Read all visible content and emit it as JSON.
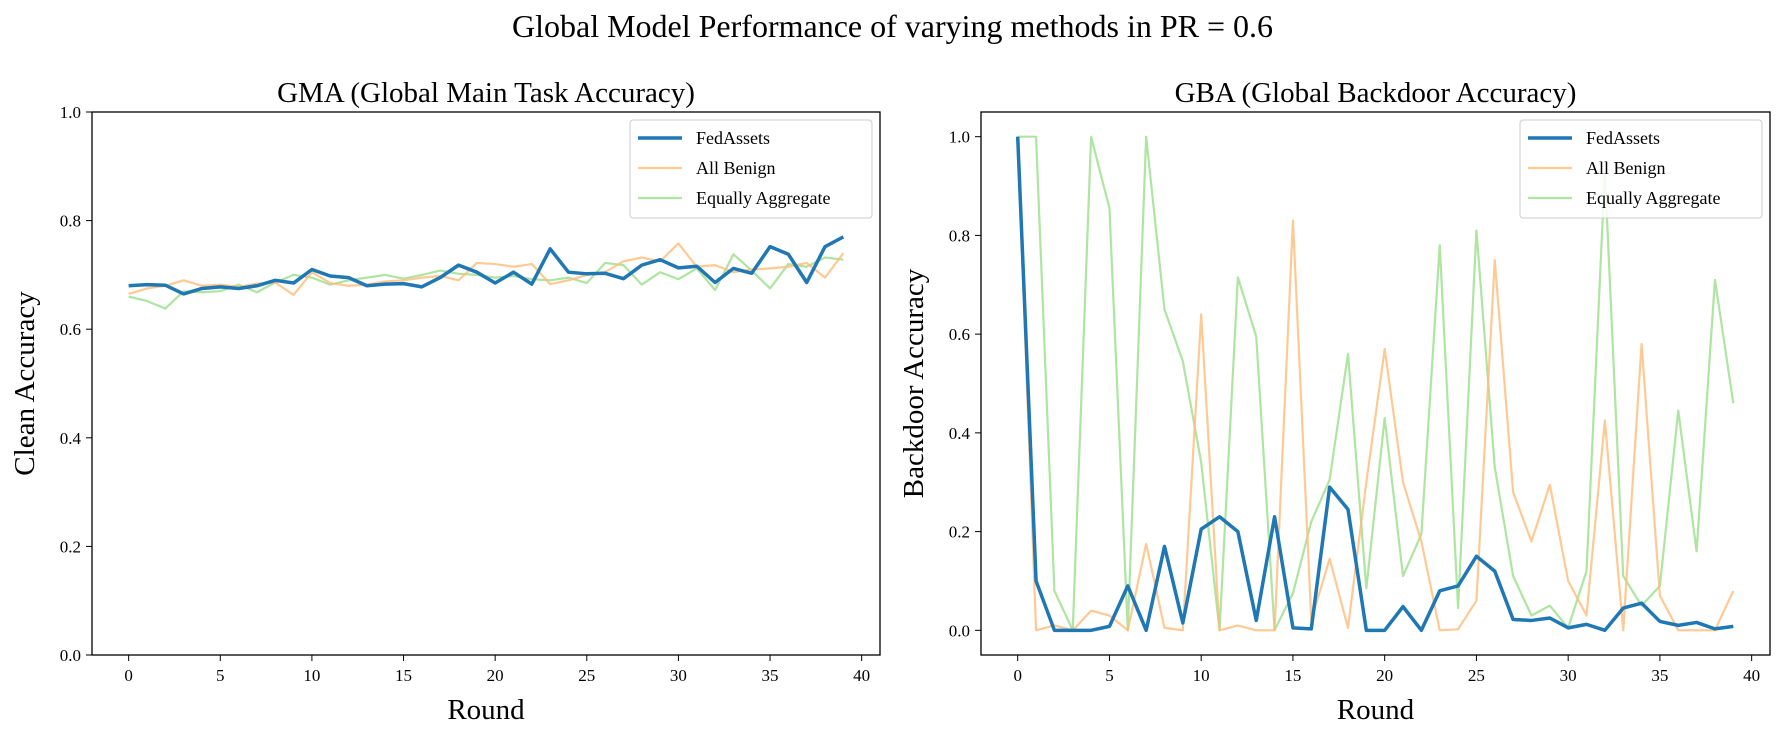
{
  "suptitle": "Global Model Performance of varying methods in PR = 0.6",
  "colors": {
    "fedassets": "#1f77b4",
    "all_benign": "#ffbb78",
    "equally_aggregate": "#98df8a"
  },
  "chart_data": [
    {
      "type": "line",
      "title": "GMA (Global Main Task Accuracy)",
      "xlabel": "Round",
      "ylabel": "Clean Accuracy",
      "xlim": [
        -2,
        41
      ],
      "ylim": [
        0.0,
        1.0
      ],
      "xticks": [
        0,
        5,
        10,
        15,
        20,
        25,
        30,
        35,
        40
      ],
      "yticks": [
        0.0,
        0.2,
        0.4,
        0.6,
        0.8,
        1.0
      ],
      "ytick_labels": [
        "0.0",
        "0.2",
        "0.4",
        "0.6",
        "0.8",
        "1.0"
      ],
      "legend_position": "top-right",
      "x": [
        0,
        1,
        2,
        3,
        4,
        5,
        6,
        7,
        8,
        9,
        10,
        11,
        12,
        13,
        14,
        15,
        16,
        17,
        18,
        19,
        20,
        21,
        22,
        23,
        24,
        25,
        26,
        27,
        28,
        29,
        30,
        31,
        32,
        33,
        34,
        35,
        36,
        37,
        38,
        39
      ],
      "series": [
        {
          "name": "FedAssets",
          "color": "#1f77b4",
          "values": [
            0.68,
            0.682,
            0.681,
            0.665,
            0.675,
            0.678,
            0.675,
            0.68,
            0.69,
            0.685,
            0.71,
            0.698,
            0.695,
            0.68,
            0.683,
            0.684,
            0.678,
            0.695,
            0.718,
            0.705,
            0.685,
            0.705,
            0.683,
            0.748,
            0.705,
            0.702,
            0.703,
            0.693,
            0.718,
            0.728,
            0.713,
            0.716,
            0.686,
            0.712,
            0.703,
            0.752,
            0.738,
            0.686,
            0.752,
            0.77
          ]
        },
        {
          "name": "All Benign",
          "color": "#ffbb78",
          "values": [
            0.665,
            0.675,
            0.68,
            0.69,
            0.68,
            0.682,
            0.678,
            0.684,
            0.686,
            0.663,
            0.705,
            0.685,
            0.68,
            0.682,
            0.688,
            0.69,
            0.695,
            0.698,
            0.69,
            0.722,
            0.72,
            0.715,
            0.72,
            0.683,
            0.69,
            0.7,
            0.705,
            0.725,
            0.732,
            0.725,
            0.758,
            0.715,
            0.718,
            0.705,
            0.71,
            0.712,
            0.715,
            0.722,
            0.695,
            0.74
          ]
        },
        {
          "name": "Equally Aggregate",
          "color": "#98df8a",
          "values": [
            0.66,
            0.652,
            0.638,
            0.67,
            0.668,
            0.67,
            0.682,
            0.668,
            0.686,
            0.7,
            0.695,
            0.682,
            0.69,
            0.695,
            0.7,
            0.693,
            0.7,
            0.708,
            0.702,
            0.7,
            0.695,
            0.698,
            0.692,
            0.69,
            0.695,
            0.685,
            0.722,
            0.718,
            0.682,
            0.705,
            0.692,
            0.712,
            0.672,
            0.738,
            0.708,
            0.675,
            0.72,
            0.715,
            0.732,
            0.728
          ]
        }
      ]
    },
    {
      "type": "line",
      "title": "GBA (Global Backdoor Accuracy)",
      "xlabel": "Round",
      "ylabel": "Backdoor Accuracy",
      "xlim": [
        -2,
        41
      ],
      "ylim": [
        -0.05,
        1.05
      ],
      "xticks": [
        0,
        5,
        10,
        15,
        20,
        25,
        30,
        35,
        40
      ],
      "yticks": [
        0.0,
        0.2,
        0.4,
        0.6,
        0.8,
        1.0
      ],
      "ytick_labels": [
        "0.0",
        "0.2",
        "0.4",
        "0.6",
        "0.8",
        "1.0"
      ],
      "legend_position": "top-right",
      "x": [
        0,
        1,
        2,
        3,
        4,
        5,
        6,
        7,
        8,
        9,
        10,
        11,
        12,
        13,
        14,
        15,
        16,
        17,
        18,
        19,
        20,
        21,
        22,
        23,
        24,
        25,
        26,
        27,
        28,
        29,
        30,
        31,
        32,
        33,
        34,
        35,
        36,
        37,
        38,
        39
      ],
      "series": [
        {
          "name": "FedAssets",
          "color": "#1f77b4",
          "values": [
            1.0,
            0.1,
            0.0,
            0.0,
            0.0,
            0.008,
            0.09,
            0.0,
            0.17,
            0.015,
            0.205,
            0.23,
            0.2,
            0.02,
            0.23,
            0.005,
            0.003,
            0.29,
            0.245,
            0.0,
            0.0,
            0.048,
            0.0,
            0.08,
            0.09,
            0.15,
            0.12,
            0.022,
            0.02,
            0.025,
            0.005,
            0.012,
            0.0,
            0.045,
            0.055,
            0.018,
            0.01,
            0.016,
            0.003,
            0.008
          ]
        },
        {
          "name": "All Benign",
          "color": "#ffbb78",
          "values": [
            1.0,
            0.0,
            0.01,
            0.0,
            0.04,
            0.03,
            0.0,
            0.175,
            0.005,
            0.0,
            0.64,
            0.0,
            0.01,
            0.0,
            0.0,
            0.83,
            0.02,
            0.145,
            0.005,
            0.3,
            0.57,
            0.3,
            0.18,
            0.0,
            0.002,
            0.06,
            0.75,
            0.28,
            0.18,
            0.295,
            0.1,
            0.03,
            0.425,
            0.0,
            0.58,
            0.07,
            0.0,
            0.0,
            0.0,
            0.08
          ]
        },
        {
          "name": "Equally Aggregate",
          "color": "#98df8a",
          "values": [
            1.0,
            1.0,
            0.08,
            0.0,
            1.0,
            0.855,
            0.0,
            1.0,
            0.65,
            0.545,
            0.34,
            0.0,
            0.715,
            0.595,
            0.0,
            0.075,
            0.22,
            0.305,
            0.56,
            0.085,
            0.43,
            0.11,
            0.195,
            0.78,
            0.045,
            0.81,
            0.33,
            0.11,
            0.03,
            0.05,
            0.005,
            0.12,
            0.93,
            0.11,
            0.05,
            0.09,
            0.445,
            0.16,
            0.71,
            0.46
          ]
        }
      ]
    }
  ]
}
